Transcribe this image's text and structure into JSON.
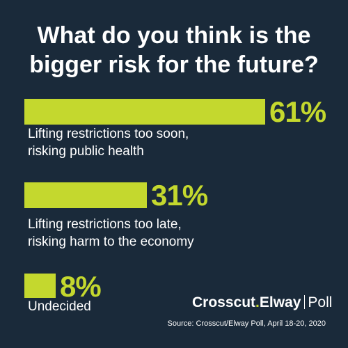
{
  "chart_data": {
    "type": "bar",
    "orientation": "horizontal",
    "title": "What do you think is the bigger risk for the future?",
    "categories": [
      "Lifting restrictions too soon,\nrisking public health",
      "Lifting restrictions too late,\nrisking harm to the economy",
      "Undecided"
    ],
    "values": [
      61,
      31,
      8
    ],
    "value_labels": [
      "61%",
      "31%",
      "8%"
    ],
    "xlim": [
      0,
      100
    ],
    "grid": false,
    "legend": "none",
    "colors": {
      "bar": "#c4d82e",
      "background": "#1a2a3a",
      "text": "#ffffff"
    }
  },
  "branding": {
    "part1": "Crosscut",
    "dot": ".",
    "part2": "Elway",
    "part3": "Poll"
  },
  "source": "Source: Crosscut/Elway Poll, April 18-20, 2020"
}
